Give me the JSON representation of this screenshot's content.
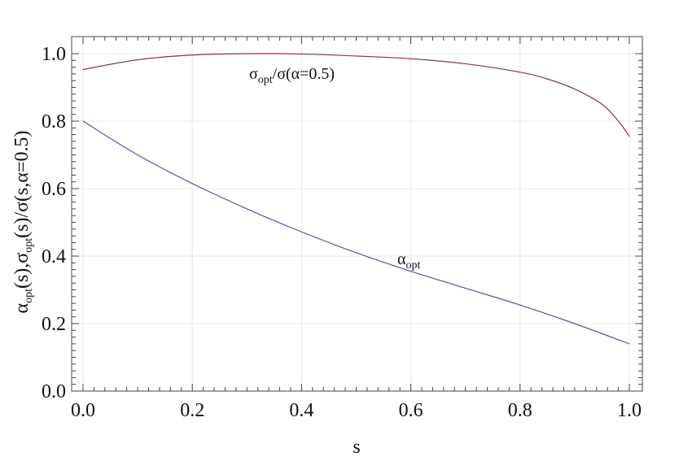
{
  "chart_data": {
    "type": "line",
    "title": "",
    "xlabel": "s",
    "ylabel": {
      "main_1": "α",
      "sub_1": "opt",
      "main_2": "(s),σ",
      "sub_2": "opt",
      "main_3": "(s)/σ(s,α=0.5)"
    },
    "xlim": [
      0,
      1
    ],
    "ylim": [
      0,
      1.0
    ],
    "x_ticks": [
      "0.0",
      "0.2",
      "0.4",
      "0.6",
      "0.8",
      "1.0"
    ],
    "y_ticks": [
      "0.0",
      "0.2",
      "0.4",
      "0.6",
      "0.8",
      "1.0"
    ],
    "grid": true,
    "series": [
      {
        "name": "σopt/σ(α=0.5)",
        "label_parts": {
          "main_1": "σ",
          "sub_1": "opt",
          "main_2": "/σ(α=0.5)"
        },
        "color": "#8b2f5c",
        "x": [
          0.0,
          0.1,
          0.2,
          0.3,
          0.4,
          0.5,
          0.6,
          0.7,
          0.8,
          0.85,
          0.9,
          0.95,
          0.98,
          1.0
        ],
        "values": [
          0.953,
          0.982,
          0.996,
          1.0,
          0.999,
          0.993,
          0.985,
          0.97,
          0.945,
          0.925,
          0.895,
          0.85,
          0.8,
          0.755
        ]
      },
      {
        "name": "αopt",
        "label_parts": {
          "main_1": "α",
          "sub_1": "opt"
        },
        "color": "#5555a6",
        "x": [
          0.0,
          0.1,
          0.2,
          0.3,
          0.4,
          0.5,
          0.6,
          0.7,
          0.8,
          0.9,
          1.0
        ],
        "values": [
          0.8,
          0.7,
          0.615,
          0.54,
          0.472,
          0.41,
          0.355,
          0.305,
          0.255,
          0.2,
          0.14
        ]
      }
    ]
  }
}
